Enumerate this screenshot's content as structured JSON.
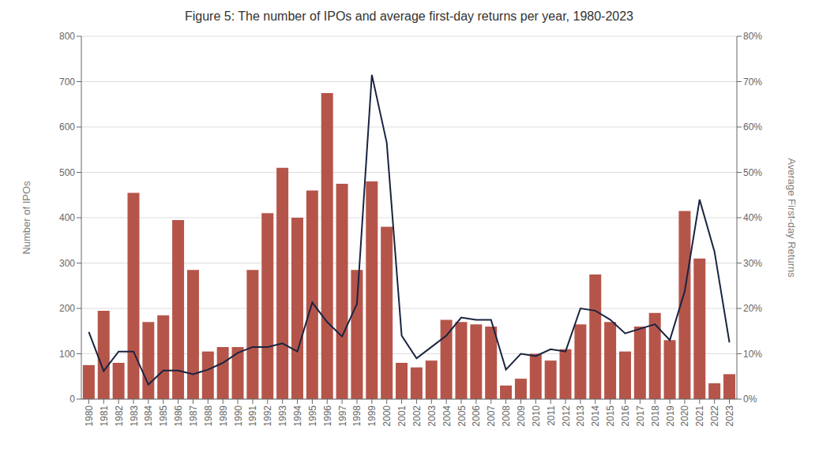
{
  "chart_data": {
    "type": "bar",
    "title": "Figure 5: The number of IPOs and average first-day returns per year, 1980-2023",
    "ylabel": "Number of IPOs",
    "y2label": "Average First-day Returns",
    "categories": [
      "1980",
      "1981",
      "1982",
      "1983",
      "1984",
      "1985",
      "1986",
      "1987",
      "1988",
      "1989",
      "1990",
      "1991",
      "1992",
      "1993",
      "1994",
      "1995",
      "1996",
      "1997",
      "1998",
      "1999",
      "2000",
      "2001",
      "2002",
      "2003",
      "2004",
      "2005",
      "2006",
      "2007",
      "2008",
      "2009",
      "2010",
      "2011",
      "2012",
      "2013",
      "2014",
      "2015",
      "2016",
      "2017",
      "2018",
      "2019",
      "2020",
      "2021",
      "2022",
      "2023"
    ],
    "series": [
      {
        "type": "bar",
        "color": "#b5554a",
        "values": [
          75,
          195,
          80,
          455,
          170,
          185,
          395,
          285,
          105,
          115,
          115,
          285,
          410,
          510,
          400,
          460,
          675,
          475,
          285,
          480,
          380,
          80,
          70,
          85,
          175,
          170,
          165,
          160,
          30,
          45,
          100,
          85,
          110,
          165,
          275,
          170,
          105,
          160,
          190,
          130,
          415,
          310,
          35,
          55
        ]
      },
      {
        "type": "line",
        "axis": "y2",
        "color": "#1a2440",
        "marker": "none",
        "values": [
          0.148,
          0.062,
          0.105,
          0.105,
          0.032,
          0.063,
          0.063,
          0.055,
          0.065,
          0.08,
          0.102,
          0.115,
          0.115,
          0.123,
          0.105,
          0.213,
          0.17,
          0.138,
          0.21,
          0.715,
          0.565,
          0.14,
          0.09,
          0.115,
          0.14,
          0.18,
          0.175,
          0.175,
          0.065,
          0.1,
          0.095,
          0.11,
          0.105,
          0.2,
          0.195,
          0.175,
          0.145,
          0.155,
          0.165,
          0.13,
          0.238,
          0.44,
          0.325,
          0.125
        ]
      }
    ],
    "ylim": [
      0,
      800
    ],
    "yticks": [
      0,
      100,
      200,
      300,
      400,
      500,
      600,
      700,
      800
    ],
    "y2lim": [
      0.0,
      0.8
    ],
    "y2ticks": [
      {
        "value": 0.0,
        "label": "0%"
      },
      {
        "value": 0.1,
        "label": "10%"
      },
      {
        "value": 0.2,
        "label": "20%"
      },
      {
        "value": 0.3,
        "label": "30%"
      },
      {
        "value": 0.4,
        "label": "40%"
      },
      {
        "value": 0.5,
        "label": "50%"
      },
      {
        "value": 0.6,
        "label": "60%"
      },
      {
        "value": 0.7,
        "label": "70%"
      },
      {
        "value": 0.8,
        "label": "80%"
      }
    ],
    "grid": true
  }
}
